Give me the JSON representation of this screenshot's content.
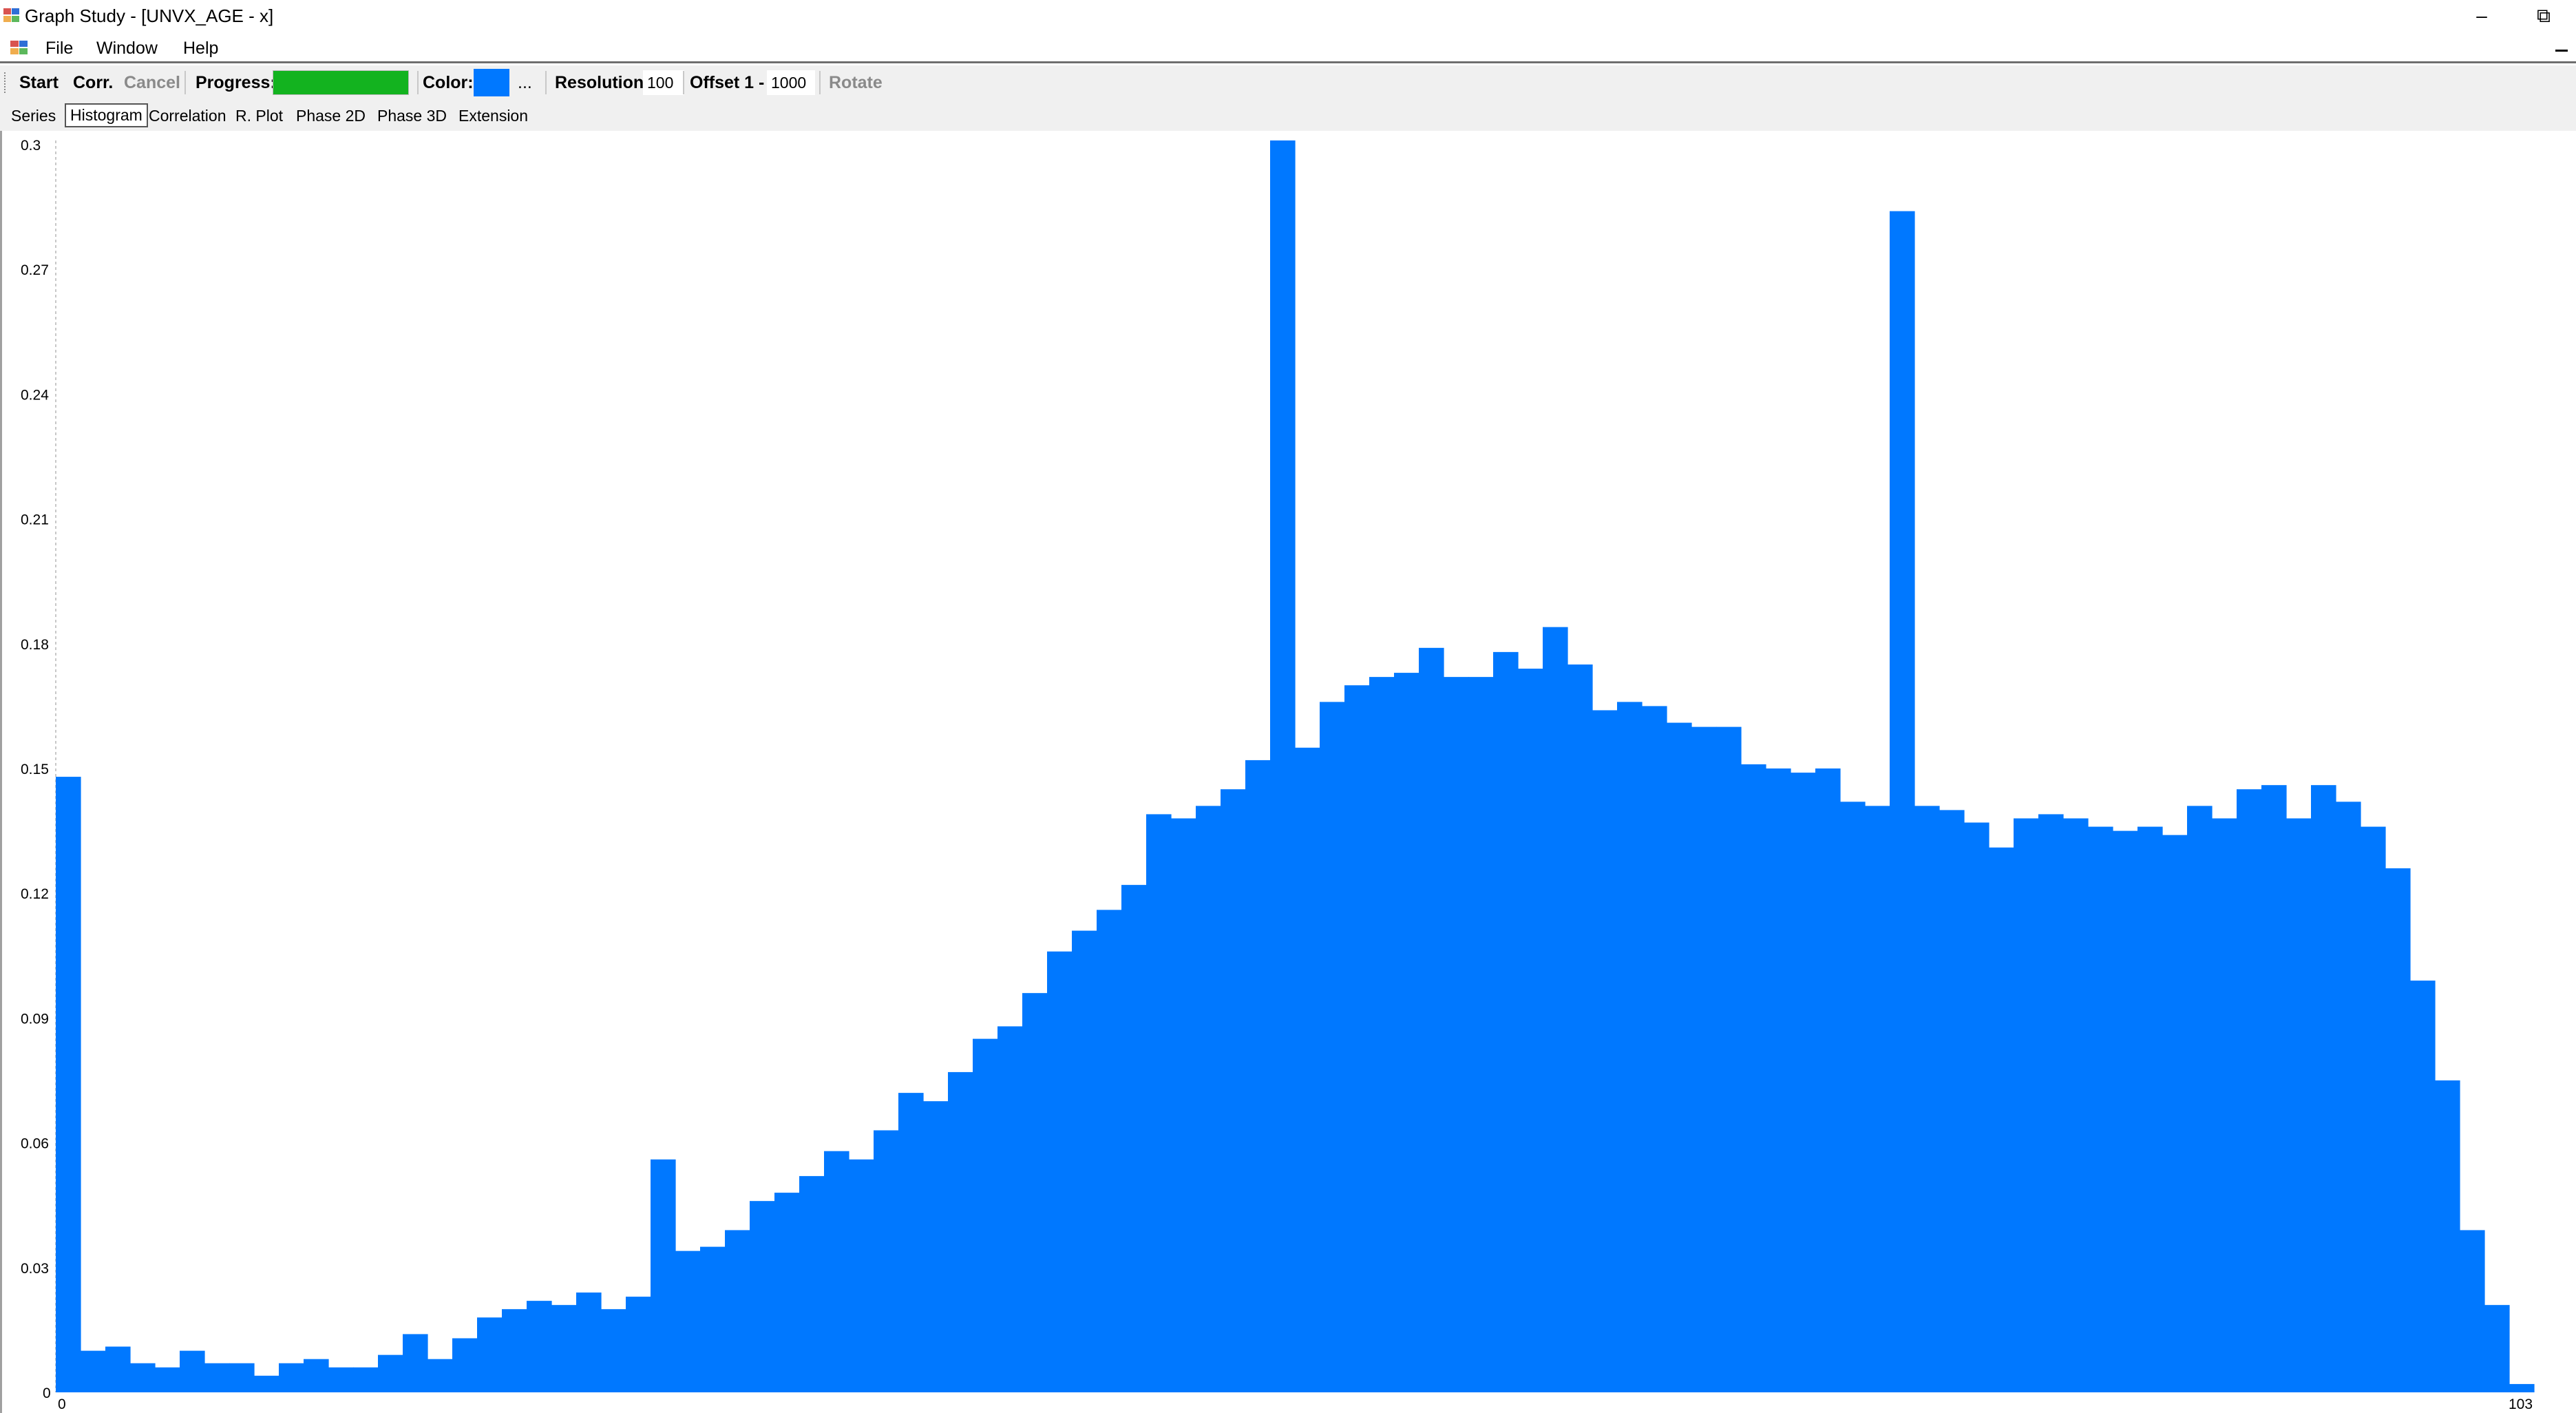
{
  "window": {
    "title": "Graph Study - [UNVX_AGE - x]",
    "icon": "app-icon",
    "controls": {
      "minimize_label": "–",
      "restore_label": "⧉"
    }
  },
  "menu": {
    "file": "File",
    "window": "Window",
    "help": "Help"
  },
  "toolbar": {
    "start": "Start",
    "corr": "Corr.",
    "cancel": "Cancel",
    "progress_label": "Progress:",
    "progress_value": 1.0,
    "progress_color": "#13b31f",
    "color_label": "Color:",
    "color_value": "#0078ff",
    "color_more": "...",
    "resolution_label": "Resolution",
    "resolution_value": "100",
    "offset_label": "Offset 1 -",
    "offset_value": "1000",
    "rotate": "Rotate"
  },
  "tabs": [
    "Series",
    "Histogram",
    "Correlation",
    "R. Plot",
    "Phase 2D",
    "Phase 3D",
    "Extension"
  ],
  "active_tab": "Histogram",
  "chart_data": {
    "type": "bar",
    "title": "",
    "xlabel": "",
    "ylabel": "",
    "x_tick_labels": [
      "0",
      "103"
    ],
    "y_tick_labels": [
      "0",
      "0.03",
      "0.06",
      "0.09",
      "0.12",
      "0.15",
      "0.18",
      "0.21",
      "0.24",
      "0.27",
      "0.3"
    ],
    "xlim": [
      0,
      103
    ],
    "ylim": [
      0,
      0.3
    ],
    "bar_color": "#0078ff",
    "grid": false,
    "values": [
      0.148,
      0.01,
      0.011,
      0.007,
      0.006,
      0.01,
      0.007,
      0.007,
      0.004,
      0.007,
      0.008,
      0.006,
      0.006,
      0.009,
      0.014,
      0.008,
      0.013,
      0.018,
      0.02,
      0.022,
      0.021,
      0.024,
      0.02,
      0.023,
      0.056,
      0.034,
      0.035,
      0.039,
      0.046,
      0.048,
      0.052,
      0.058,
      0.056,
      0.063,
      0.072,
      0.07,
      0.077,
      0.085,
      0.088,
      0.096,
      0.106,
      0.111,
      0.116,
      0.122,
      0.139,
      0.138,
      0.141,
      0.145,
      0.152,
      0.301,
      0.155,
      0.166,
      0.17,
      0.172,
      0.173,
      0.179,
      0.172,
      0.172,
      0.178,
      0.174,
      0.184,
      0.175,
      0.164,
      0.166,
      0.165,
      0.161,
      0.16,
      0.16,
      0.151,
      0.15,
      0.149,
      0.15,
      0.142,
      0.141,
      0.284,
      0.141,
      0.14,
      0.137,
      0.131,
      0.138,
      0.139,
      0.138,
      0.136,
      0.135,
      0.136,
      0.134,
      0.141,
      0.138,
      0.145,
      0.146,
      0.138,
      0.146,
      0.142,
      0.136,
      0.126,
      0.099,
      0.075,
      0.039,
      0.021,
      0.002
    ]
  }
}
